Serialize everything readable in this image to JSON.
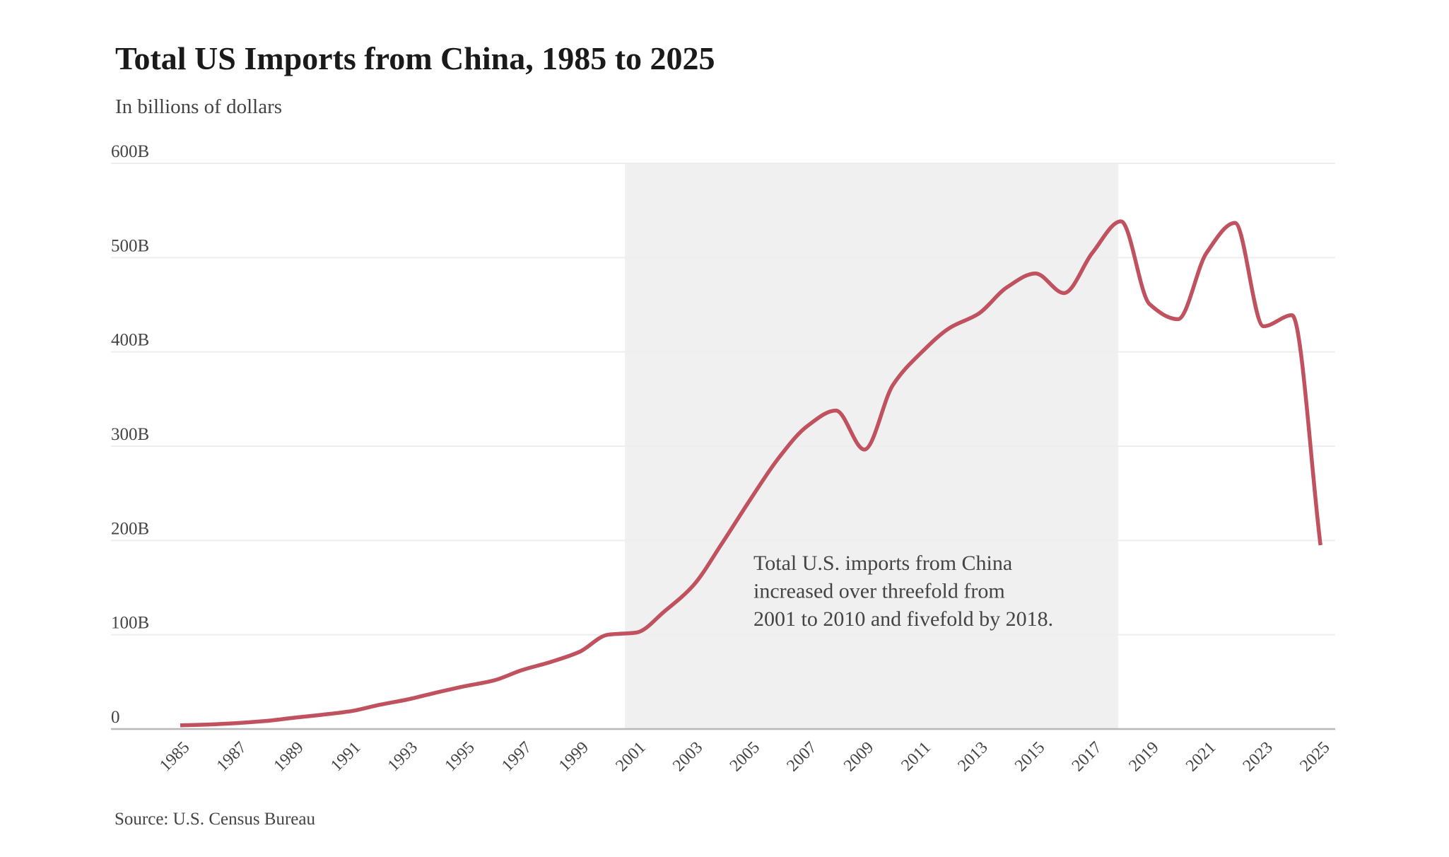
{
  "chart_data": {
    "type": "line",
    "title": "Total US Imports from China, 1985 to 2025",
    "subtitle": "In billions of dollars",
    "xlabel": "",
    "ylabel": "",
    "source": "Source: U.S. Census Bureau",
    "ylim": [
      0,
      600
    ],
    "xlim": [
      1985,
      2025
    ],
    "grid": true,
    "legend": "none",
    "y_ticks": [
      {
        "value": 0,
        "label": "0"
      },
      {
        "value": 100,
        "label": "100B"
      },
      {
        "value": 200,
        "label": "200B"
      },
      {
        "value": 300,
        "label": "300B"
      },
      {
        "value": 400,
        "label": "400B"
      },
      {
        "value": 500,
        "label": "500B"
      },
      {
        "value": 600,
        "label": "600B"
      }
    ],
    "x_ticks": [
      "1985",
      "1987",
      "1989",
      "1991",
      "1993",
      "1995",
      "1997",
      "1999",
      "2001",
      "2003",
      "2005",
      "2007",
      "2009",
      "2011",
      "2013",
      "2015",
      "2017",
      "2019",
      "2021",
      "2023",
      "2025"
    ],
    "highlight_range": {
      "start": 2000.6,
      "end": 2017.9,
      "color": "#f0f0f0"
    },
    "annotation": {
      "lines": [
        "Total U.S. imports from China",
        "increased over threefold from",
        "2001 to 2010 and fivefold by 2018."
      ]
    },
    "series": [
      {
        "name": "Total US imports from China",
        "color": "#c0525f",
        "x": [
          1985,
          1986,
          1987,
          1988,
          1989,
          1990,
          1991,
          1992,
          1993,
          1994,
          1995,
          1996,
          1997,
          1998,
          1999,
          2000,
          2001,
          2002,
          2003,
          2004,
          2005,
          2006,
          2007,
          2008,
          2009,
          2010,
          2011,
          2012,
          2013,
          2014,
          2015,
          2016,
          2017,
          2018,
          2019,
          2020,
          2021,
          2022,
          2023,
          2024,
          2025
        ],
        "values": [
          3.9,
          4.8,
          6.3,
          8.5,
          12.0,
          15.2,
          19.0,
          25.7,
          31.5,
          38.8,
          45.5,
          51.5,
          62.6,
          71.2,
          81.8,
          100.0,
          102.3,
          125.2,
          152.4,
          196.7,
          243.5,
          287.8,
          321.4,
          337.8,
          296.4,
          364.9,
          399.4,
          425.6,
          440.4,
          468.5,
          483.2,
          462.4,
          505.2,
          538.5,
          450.8,
          434.7,
          504.9,
          536.8,
          427.2,
          438.9,
          195.0
        ]
      }
    ]
  }
}
